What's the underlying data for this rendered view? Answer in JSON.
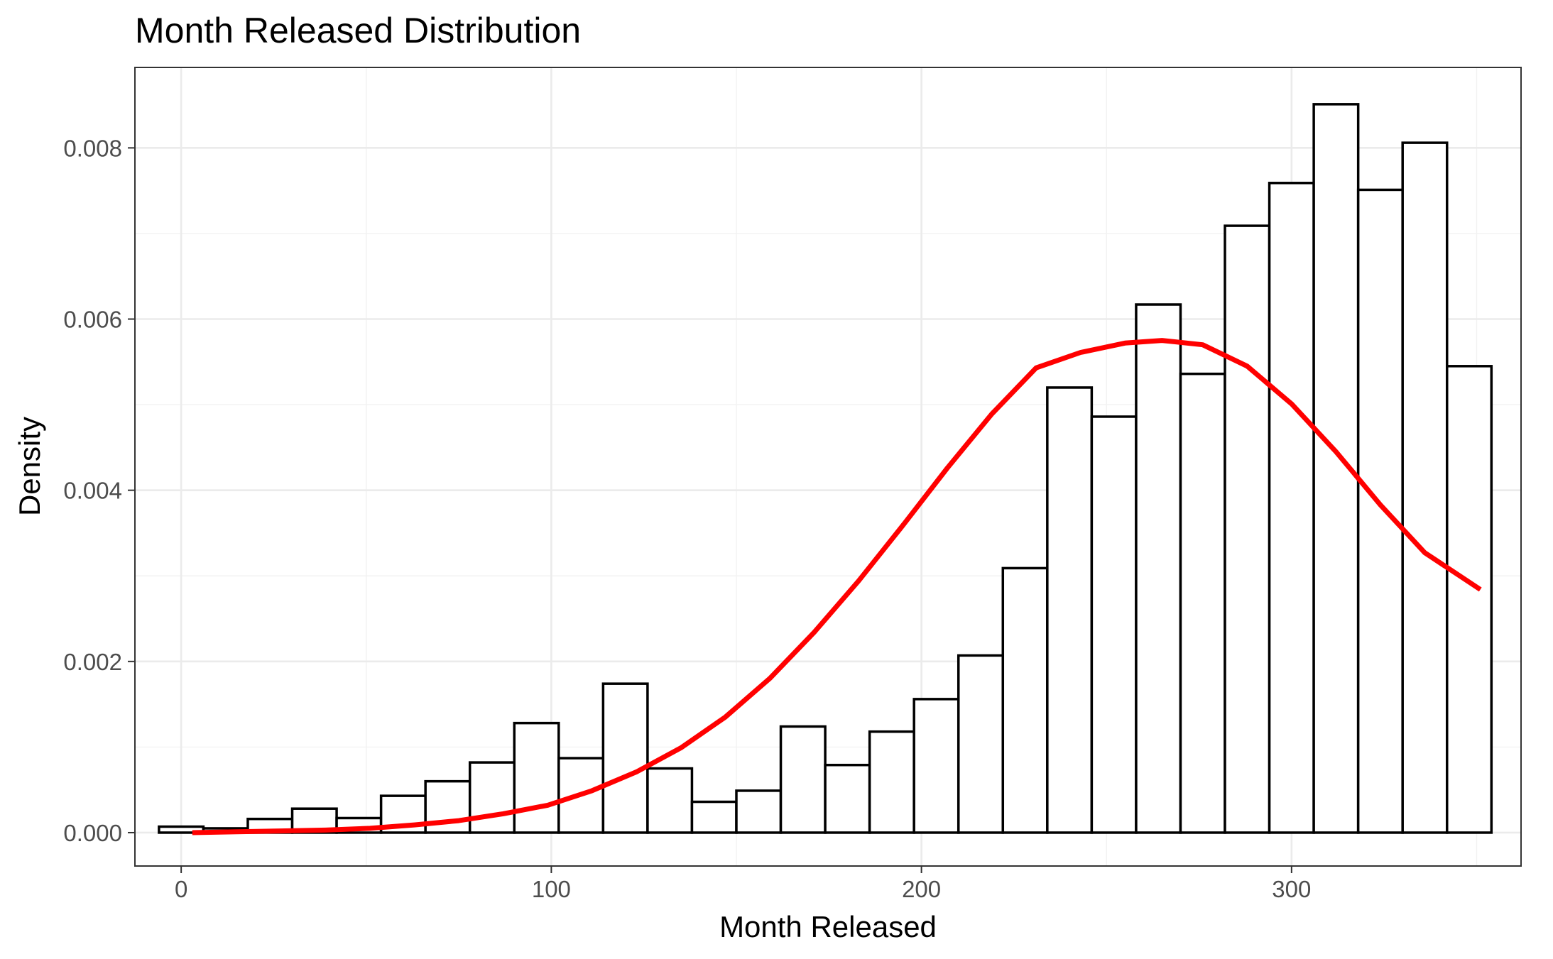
{
  "chart_data": {
    "type": "bar",
    "title": "Month Released Distribution",
    "xlabel": "Month Released",
    "ylabel": "Density",
    "xlim": [
      -12.5,
      362
    ],
    "ylim": [
      -0.00039,
      0.00894
    ],
    "x_ticks": [
      0,
      100,
      200,
      300
    ],
    "x_tick_labels": [
      "0",
      "100",
      "200",
      "300"
    ],
    "y_ticks": [
      0,
      0.002,
      0.004,
      0.006,
      0.008
    ],
    "y_tick_labels": [
      "0.000",
      "0.002",
      "0.004",
      "0.006",
      "0.008"
    ],
    "grid": true,
    "histogram": {
      "bin_centers": [
        0,
        12,
        24,
        36,
        48,
        60,
        72,
        84,
        96,
        108,
        120,
        132,
        144,
        156,
        168,
        180,
        192,
        204,
        216,
        228,
        240,
        252,
        264,
        276,
        288,
        300,
        312,
        324,
        336,
        348
      ],
      "bin_width": 12,
      "values": [
        7e-05,
        5e-05,
        0.00016,
        0.00028,
        0.00017,
        0.00043,
        0.0006,
        0.00082,
        0.00128,
        0.00087,
        0.00174,
        0.00075,
        0.00036,
        0.00049,
        0.00124,
        0.00079,
        0.00118,
        0.00156,
        0.00207,
        0.00309,
        0.0052,
        0.00486,
        0.00617,
        0.00536,
        0.00709,
        0.00759,
        0.00851,
        0.00751,
        0.00806,
        0.00545
      ],
      "fill": "#ffffff",
      "stroke": "#000000"
    },
    "series": [
      {
        "type": "line",
        "color": "#ff0000",
        "x": [
          3,
          15,
          27,
          39,
          51,
          63,
          75,
          87,
          99,
          111,
          123,
          135,
          147,
          159,
          171,
          183,
          195,
          207,
          219,
          231,
          243,
          255,
          265,
          276,
          288,
          300,
          312,
          324,
          336,
          351
        ],
        "y": [
          0.0,
          1e-05,
          2e-05,
          3e-05,
          5e-05,
          9e-05,
          0.00014,
          0.00022,
          0.00032,
          0.00049,
          0.00071,
          0.00099,
          0.00135,
          0.0018,
          0.00234,
          0.00294,
          0.00359,
          0.00426,
          0.00489,
          0.00543,
          0.00561,
          0.00572,
          0.00575,
          0.0057,
          0.00545,
          0.00501,
          0.00445,
          0.00383,
          0.00327,
          0.00284
        ]
      }
    ]
  }
}
